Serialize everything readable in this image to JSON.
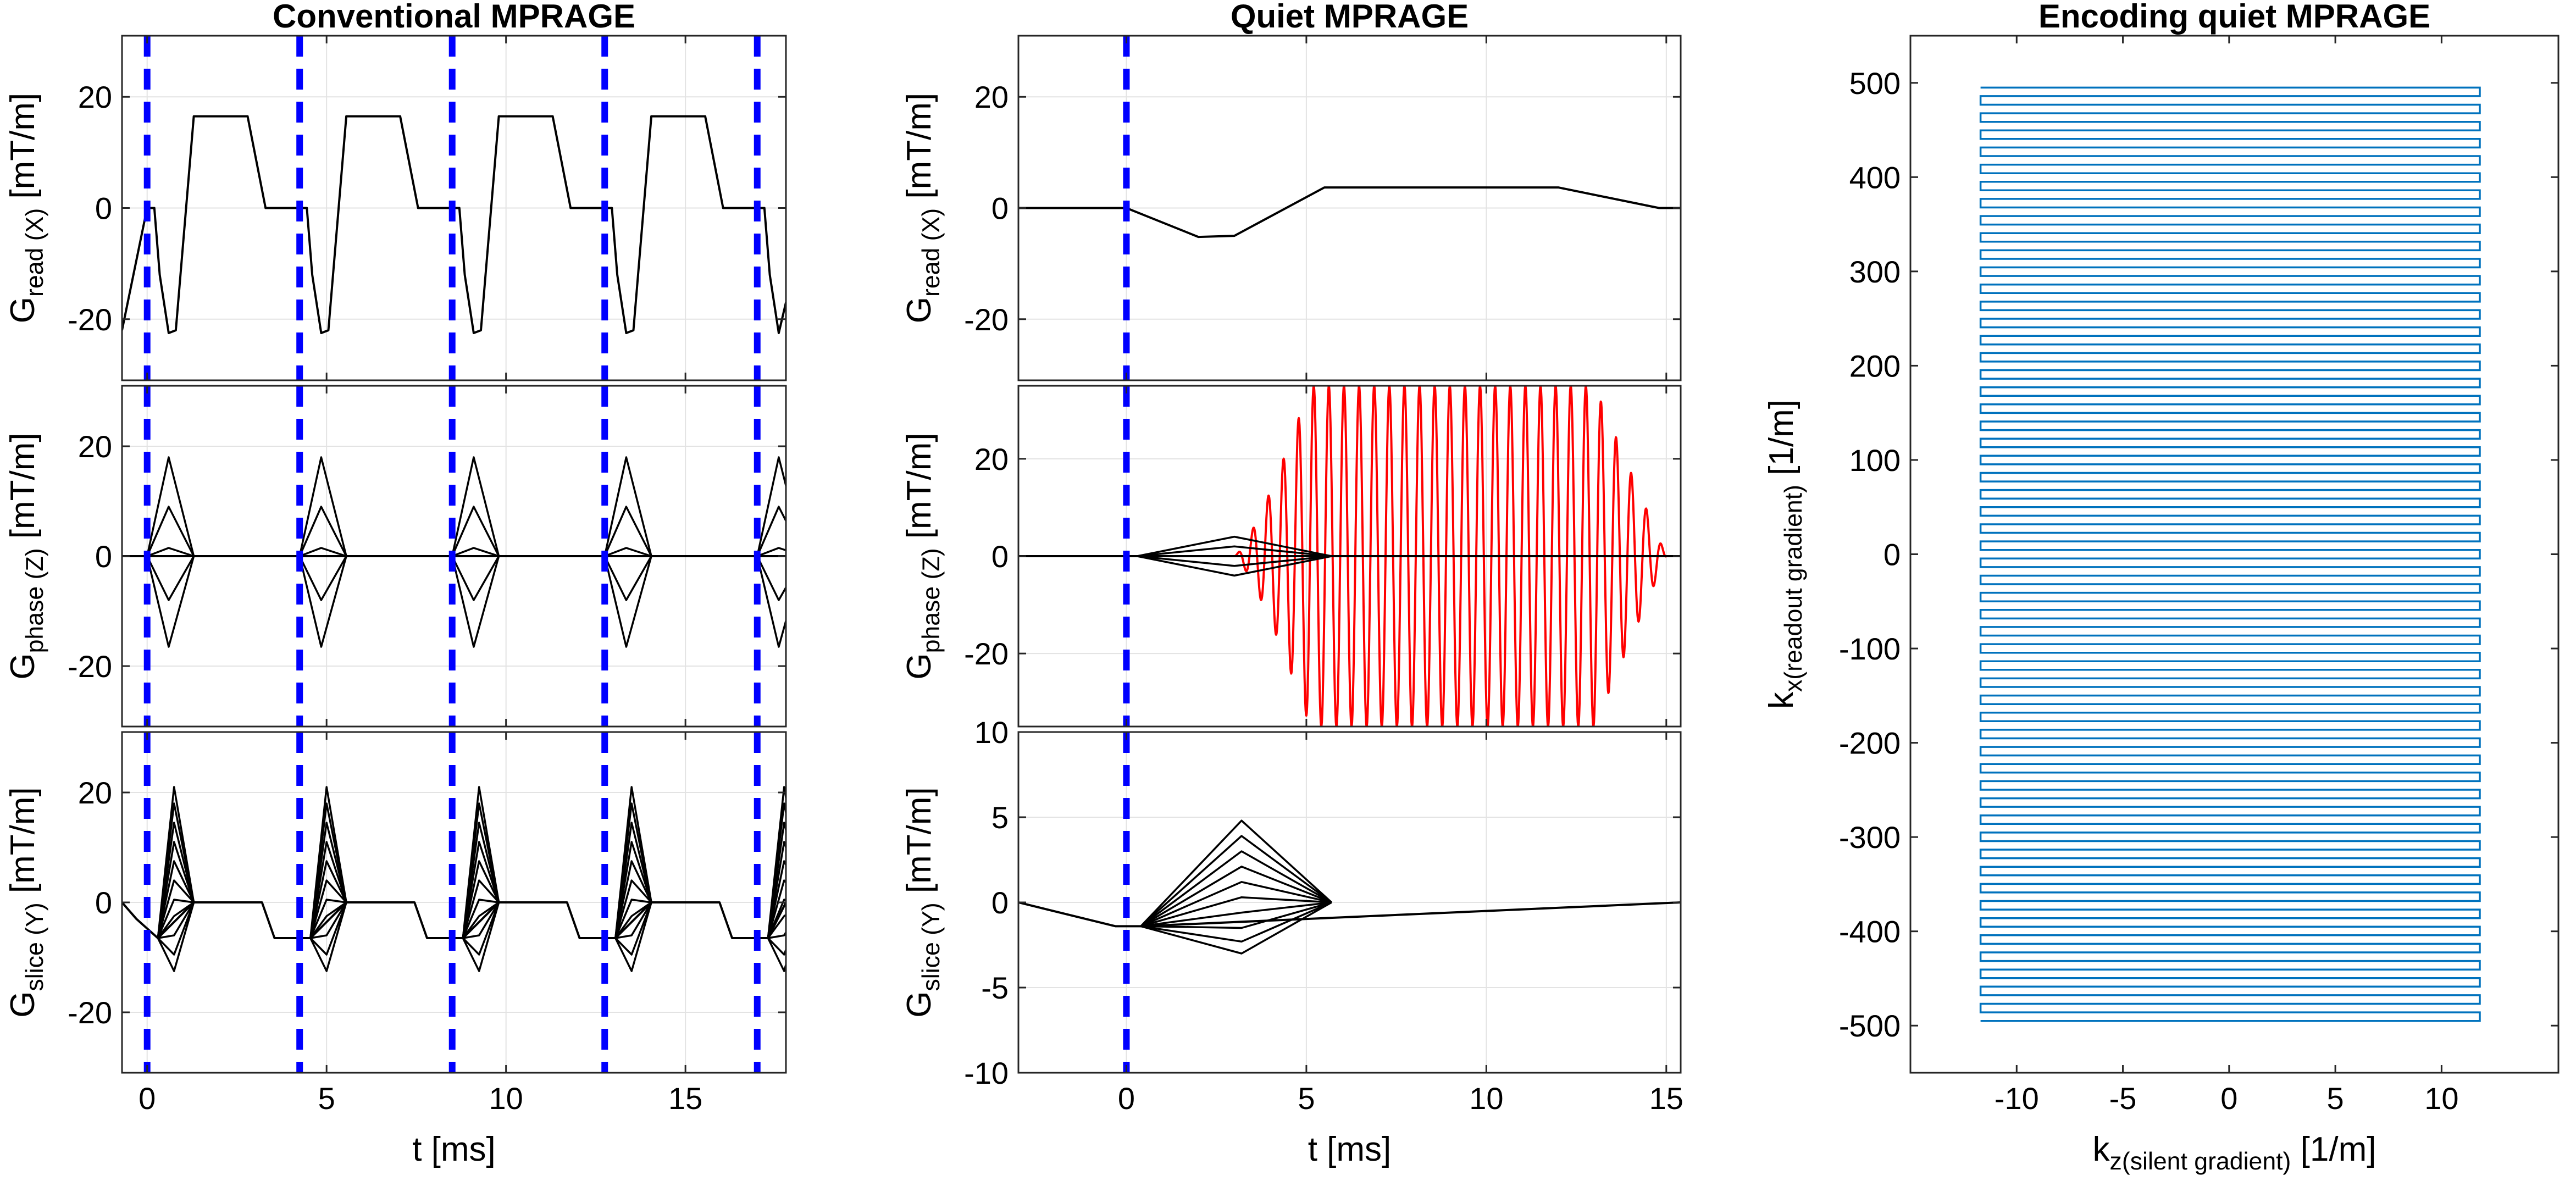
{
  "chart_data": [
    {
      "id": "conv",
      "type": "line",
      "title": "Conventional MPRAGE",
      "xlabel": "t [ms]",
      "xlim": [
        -0.7,
        17.8
      ],
      "xticks": [
        0,
        5,
        10,
        15
      ],
      "rf_pulse_times_ms": [
        0,
        4.25,
        8.5,
        12.75,
        17.0
      ],
      "panels": [
        {
          "id": "read",
          "ylabel": {
            "main": "G",
            "sub": "read (X)",
            "unit": " [mT/m]"
          },
          "ylim": [
            -31,
            31
          ],
          "yticks": [
            -20,
            0,
            20
          ],
          "series": [
            {
              "name": "",
              "color": "#000000",
              "x": [
                -0.7,
                0.0,
                0.2,
                0.35,
                0.6,
                0.8,
                1.3,
                2.8,
                3.3,
                4.25,
                4.45,
                4.6,
                4.85,
                5.05,
                5.55,
                7.05,
                7.55,
                8.5,
                8.7,
                8.85,
                9.1,
                9.3,
                9.8,
                11.3,
                11.8,
                12.75,
                12.95,
                13.1,
                13.35,
                13.55,
                14.05,
                15.55,
                16.05,
                17.0,
                17.2,
                17.35,
                17.6,
                17.8
              ],
              "y": [
                -22,
                0,
                0,
                -12,
                -22.5,
                -22,
                16.5,
                16.5,
                0,
                0,
                0,
                -12,
                -22.5,
                -22,
                16.5,
                16.5,
                0,
                0,
                0,
                -12,
                -22.5,
                -22,
                16.5,
                16.5,
                0,
                0,
                0,
                -12,
                -22.5,
                -22,
                16.5,
                16.5,
                0,
                0,
                0,
                -12,
                -22.5,
                -17
              ]
            }
          ]
        },
        {
          "id": "phase",
          "ylabel": {
            "main": "G",
            "sub": "phase (Z)",
            "unit": " [mT/m]"
          },
          "ylim": [
            -31,
            31
          ],
          "yticks": [
            -20,
            0,
            20
          ],
          "series": [
            {
              "name": "",
              "color": "#000000",
              "x": [
                -0.7,
                17.8
              ],
              "y": [
                0,
                0
              ]
            }
          ],
          "triangles": {
            "starts": [
              0,
              4.25,
              8.5,
              12.75,
              17.0
            ],
            "rise_ms": 0.6,
            "fall_ms": 0.7,
            "peaks": [
              18,
              9,
              1.5,
              -8,
              -16.5
            ]
          }
        },
        {
          "id": "slice",
          "ylabel": {
            "main": "G",
            "sub": "slice (Y)",
            "unit": " [mT/m]"
          },
          "ylim": [
            -31,
            31
          ],
          "yticks": [
            -20,
            0,
            20
          ],
          "series": [
            {
              "name": "",
              "color": "#000000",
              "x": [
                -0.7,
                -0.3,
                0.3,
                1.3,
                3.2,
                3.55,
                4.25,
                4.55,
                5.55,
                7.45,
                7.8,
                8.5,
                8.8,
                9.8,
                11.7,
                12.05,
                12.75,
                13.05,
                14.05,
                15.95,
                16.3,
                17.0,
                17.3,
                17.8
              ],
              "y": [
                0,
                -3,
                -6.5,
                0,
                0,
                -6.5,
                -6.5,
                -6.5,
                0,
                0,
                -6.5,
                -6.5,
                -6.5,
                0,
                0,
                -6.5,
                -6.5,
                -6.5,
                0,
                0,
                -6.5,
                -6.5,
                -6.5,
                0
              ]
            }
          ],
          "triangles": {
            "starts": [
              0.3,
              4.55,
              8.8,
              13.05,
              17.3
            ],
            "base": -6.5,
            "end_value": 0,
            "rise_ms": 0.45,
            "fall_ms": 0.55,
            "peaks": [
              21,
              18,
              14.5,
              11,
              7.5,
              4,
              0.5,
              -2.5,
              -6,
              -9.5,
              -12.5
            ]
          }
        }
      ]
    },
    {
      "id": "quiet",
      "type": "line",
      "title": "Quiet MPRAGE",
      "xlabel": "t [ms]",
      "xlim": [
        -3,
        15.4
      ],
      "xticks": [
        0,
        5,
        10,
        15
      ],
      "rf_pulse_times_ms": [
        0
      ],
      "panels": [
        {
          "id": "read",
          "ylabel": {
            "main": "G",
            "sub": "read (X)",
            "unit": " [mT/m]"
          },
          "ylim": [
            -31,
            31
          ],
          "yticks": [
            -20,
            0,
            20
          ],
          "series": [
            {
              "name": "",
              "color": "#000000",
              "x": [
                -3,
                0,
                2,
                3,
                5.5,
                12,
                14.8,
                15.4
              ],
              "y": [
                0,
                0,
                -5.2,
                -5,
                3.7,
                3.7,
                0,
                0
              ]
            }
          ]
        },
        {
          "id": "phase",
          "ylabel": {
            "main": "G",
            "sub": "phase (Z)",
            "unit": " [mT/m]"
          },
          "ylim": [
            -35,
            35
          ],
          "yticks": [
            -20,
            0,
            20
          ],
          "series": [
            {
              "name": "",
              "color": "#000000",
              "x": [
                -3,
                15.4
              ],
              "y": [
                0,
                0
              ]
            }
          ],
          "triangles": {
            "starts": [
              0.3
            ],
            "rise_ms": 2.7,
            "fall_ms": 2.7,
            "peaks": [
              4,
              2,
              0,
              -2,
              -4
            ]
          },
          "oscillation": {
            "color": "#ff0000",
            "t_start_ms": 3.0,
            "t_end_ms": 15.0,
            "period_ms": 0.42,
            "amplitude": 35,
            "ramp_up_end_ms": 5.1,
            "ramp_down_start_ms": 13.0
          }
        },
        {
          "id": "slice",
          "ylabel": {
            "main": "G",
            "sub": "slice (Y)",
            "unit": " [mT/m]"
          },
          "ylim": [
            -10,
            10
          ],
          "yticks": [
            -10,
            -5,
            0,
            5,
            10
          ],
          "series": [
            {
              "name": "",
              "color": "#000000",
              "x": [
                -3,
                -0.3,
                0.4,
                15.4
              ],
              "y": [
                0,
                -1.4,
                -1.4,
                0
              ]
            }
          ],
          "triangles": {
            "starts": [
              0.4
            ],
            "base": -1.4,
            "end_value": 0,
            "rise_ms": 2.8,
            "fall_ms": 2.5,
            "peaks": [
              4.8,
              3.9,
              3.0,
              2.1,
              1.2,
              0.3,
              -0.6,
              -1.5,
              -2.3,
              -3.0
            ]
          }
        }
      ]
    },
    {
      "id": "encoding",
      "type": "line",
      "title": "Encoding quiet MPRAGE",
      "xlabel": {
        "main": "k",
        "sub": "z(silent gradient)",
        "unit": "  [1/m]"
      },
      "ylabel": {
        "main": "k",
        "sub": "x(readout gradient)",
        "unit": "  [1/m]"
      },
      "xlim": [
        -15,
        15.5
      ],
      "ylim": [
        -550,
        550
      ],
      "xticks": [
        -10,
        -5,
        0,
        5,
        10
      ],
      "yticks": [
        -500,
        -400,
        -300,
        -200,
        -100,
        0,
        100,
        200,
        300,
        400,
        500
      ],
      "trajectory": {
        "color": "#0072bd",
        "kz_min": -11.7,
        "kz_max": 11.8,
        "kx_min": -495,
        "kx_max": 495,
        "lines": 110
      }
    }
  ]
}
